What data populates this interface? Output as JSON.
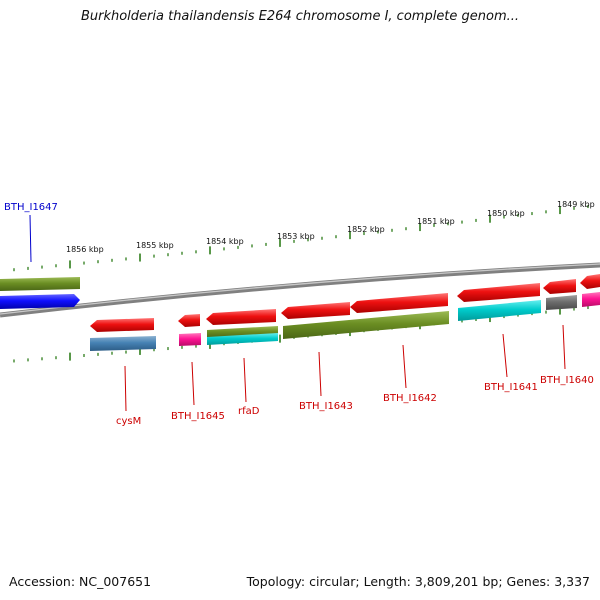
{
  "title": "Burkholderia thailandensis E264 chromosome I, complete genom...",
  "footer": {
    "accession": "Accession: NC_007651",
    "topology": "Topology: circular; Length: 3,809,201 bp; Genes: 3,337"
  },
  "colors": {
    "backbone": "#808080",
    "tick": "#2e7d1a",
    "label_blue": "#0000cc",
    "label_red": "#cc0000",
    "red": "#ee1111",
    "olive": "#6b8e23",
    "blue": "#1010ff",
    "cyan": "#00cccc",
    "steelblue": "#4682b4",
    "magenta": "#ff1493",
    "gray": "#6e6e6e"
  },
  "scale_labels": [
    "1856 kbp",
    "1855 kbp",
    "1854 kbp",
    "1853 kbp",
    "1852 kbp",
    "1851 kbp",
    "1850 kbp",
    "1849 kbp"
  ],
  "gene_labels": {
    "bth_i1647": "BTH_I1647",
    "cysm": "cysM",
    "bth_i1645": "BTH_I1645",
    "rfad": "rfaD",
    "bth_i1643": "BTH_I1643",
    "bth_i1642": "BTH_I1642",
    "bth_i1641": "BTH_I1641",
    "bth_i1640": "BTH_I1640"
  }
}
